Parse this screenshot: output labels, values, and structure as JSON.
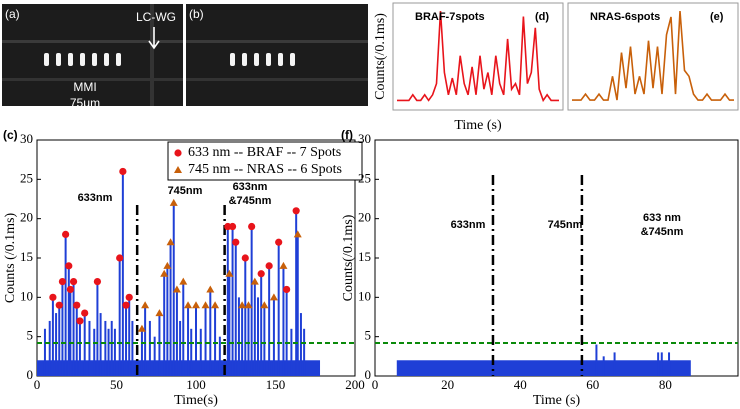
{
  "images": {
    "a": {
      "label": "(a)",
      "lc_wg": "LC-WG",
      "mmi": "MMI",
      "scale": "75μm"
    },
    "b": {
      "label": "(b)"
    }
  },
  "chart_data": [
    {
      "type": "line",
      "panel": "(d)",
      "title": "BRAF-7spots",
      "color": "#e8141b",
      "y_label": "Counts(/0.1ms)",
      "x_label": "Time (s)",
      "values": [
        0.05,
        0.05,
        0.05,
        0.05,
        0.1,
        0.05,
        0.05,
        0.1,
        0.05,
        0.1,
        0.2,
        0.85,
        0.3,
        0.1,
        0.25,
        0.1,
        0.45,
        0.2,
        0.1,
        0.35,
        0.1,
        0.45,
        0.15,
        0.3,
        0.1,
        0.45,
        0.2,
        0.1,
        0.6,
        0.15,
        0.2,
        0.1,
        0.8,
        0.2,
        0.3,
        0.7,
        0.15,
        0.05,
        0.1,
        0.05,
        0.05,
        0.05
      ]
    },
    {
      "type": "line",
      "panel": "(e)",
      "title": "NRAS-6spots",
      "color": "#c8600a",
      "values": [
        0.05,
        0.05,
        0.05,
        0.1,
        0.05,
        0.05,
        0.1,
        0.05,
        0.05,
        0.25,
        0.05,
        0.45,
        0.15,
        0.5,
        0.1,
        0.25,
        0.1,
        0.55,
        0.15,
        0.5,
        0.1,
        0.6,
        0.75,
        0.1,
        0.8,
        0.3,
        0.25,
        0.1,
        0.05,
        0.05,
        0.1,
        0.05,
        0.05,
        0.05,
        0.1,
        0.05,
        0.05
      ]
    },
    {
      "type": "stem",
      "panel": "(c)",
      "x_label": "Time(s)",
      "y_label": "Counts (/0.1ms)",
      "color": "#1f3fd6",
      "xlim": [
        0,
        200
      ],
      "ylim": [
        0,
        30
      ],
      "xticks": [
        0,
        50,
        100,
        150,
        200
      ],
      "yticks": [
        0,
        5,
        10,
        15,
        20,
        25,
        30
      ],
      "x": [
        5,
        8,
        10,
        12,
        14,
        16,
        18,
        20,
        21,
        23,
        25,
        27,
        30,
        33,
        36,
        38,
        40,
        43,
        45,
        47,
        49,
        52,
        54,
        56,
        58,
        60,
        66,
        68,
        71,
        74,
        77,
        80,
        82,
        84,
        86,
        88,
        90,
        92,
        95,
        97,
        100,
        103,
        106,
        109,
        112,
        115,
        120,
        121,
        123,
        125,
        127,
        129,
        131,
        133,
        135,
        137,
        139,
        141,
        143,
        146,
        149,
        152,
        155,
        157,
        160,
        163,
        164,
        166,
        168
      ],
      "values": [
        6,
        7,
        10,
        8,
        9,
        12,
        18,
        14,
        11,
        12,
        9,
        7,
        8,
        7,
        6,
        12,
        8,
        7,
        6,
        7,
        6,
        15,
        26,
        9,
        10,
        7,
        6,
        9,
        7,
        5,
        8,
        13,
        14,
        17,
        22,
        11,
        7,
        12,
        9,
        6,
        9,
        6,
        9,
        11,
        9,
        5,
        19,
        13,
        19,
        17,
        10,
        9,
        15,
        9,
        19,
        12,
        10,
        13,
        9,
        14,
        10,
        17,
        14,
        11,
        6,
        21,
        18,
        8,
        6
      ],
      "noise": {
        "x": [
          0,
          178
        ],
        "value": 2
      },
      "threshold": {
        "value": 4.2,
        "color": "#0a8a0a"
      },
      "dividers": [
        63,
        118
      ],
      "annotations": [
        [
          "633nm"
        ],
        [
          "745nm"
        ],
        [
          "633nm",
          "&745nm"
        ]
      ],
      "series": [
        {
          "name": "633 nm -- BRAF -- 7 Spots",
          "color": "#e8141b",
          "marker": "circle",
          "x": [
            10,
            14,
            16,
            18,
            20,
            21,
            23,
            25,
            27,
            30,
            38,
            52,
            54,
            56,
            58,
            120,
            123,
            125,
            131,
            135,
            141,
            146,
            152,
            157,
            163
          ],
          "values": [
            10,
            9,
            12,
            18,
            14,
            11,
            12,
            9,
            7,
            8,
            12,
            15,
            26,
            9,
            10,
            19,
            19,
            17,
            15,
            19,
            13,
            14,
            17,
            11,
            21
          ]
        },
        {
          "name": "745 nm -- NRAS -- 6 Spots",
          "color": "#c8600a",
          "marker": "triangle",
          "x": [
            66,
            68,
            77,
            80,
            82,
            84,
            86,
            88,
            92,
            95,
            100,
            106,
            109,
            112,
            121,
            129,
            133,
            137,
            143,
            149,
            155,
            164
          ],
          "values": [
            6,
            9,
            8,
            13,
            14,
            17,
            22,
            11,
            12,
            9,
            9,
            9,
            11,
            9,
            13,
            9,
            9,
            12,
            9,
            10,
            14,
            18
          ]
        }
      ]
    },
    {
      "type": "stem",
      "panel": "(f)",
      "x_label": "Time (s)",
      "y_label": "Counts(/0.1ms)",
      "color": "#1f3fd6",
      "xlim": [
        0,
        100
      ],
      "ylim": [
        0,
        30
      ],
      "xticks": [
        0,
        20,
        40,
        60,
        80
      ],
      "yticks": [
        0,
        5,
        10,
        15,
        20,
        25,
        30
      ],
      "x": [
        61,
        63,
        66,
        78,
        79,
        81
      ],
      "values": [
        4,
        2.5,
        3,
        3,
        3,
        3
      ],
      "noise": {
        "x": [
          6,
          87
        ],
        "value": 2
      },
      "threshold": {
        "value": 4.2,
        "color": "#0a8a0a"
      },
      "dividers": [
        32.5,
        57
      ],
      "annotations": [
        [
          "633nm"
        ],
        [
          "745nm"
        ],
        [
          "633 nm",
          "&745nm"
        ]
      ]
    }
  ]
}
